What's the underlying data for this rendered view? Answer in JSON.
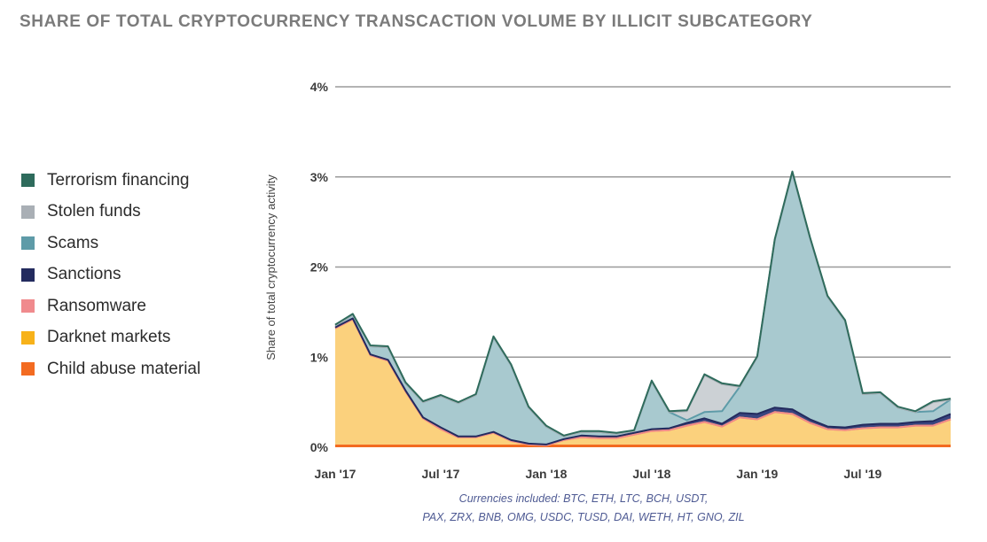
{
  "header": {
    "title": "SHARE OF TOTAL CRYPTOCURRENCY TRANSCACTION VOLUME BY ILLICIT SUBCATEGORY"
  },
  "legend": [
    {
      "label": "Terrorism financing",
      "color": "#2e6b5c"
    },
    {
      "label": "Stolen funds",
      "color": "#a9afb5"
    },
    {
      "label": "Scams",
      "color": "#5e9ba8"
    },
    {
      "label": "Sanctions",
      "color": "#232b5e"
    },
    {
      "label": "Ransomware",
      "color": "#f08a8d"
    },
    {
      "label": "Darknet markets",
      "color": "#f7b21a"
    },
    {
      "label": "Child abuse material",
      "color": "#f36b21"
    }
  ],
  "footer": {
    "note_line1": "Currencies included: BTC, ETH, LTC, BCH, USDT,",
    "note_line2": "PAX, ZRX, BNB, OMG, USDC, TUSD, DAI, WETH, HT, GNO, ZIL"
  },
  "chart_data": {
    "type": "area",
    "stacked": true,
    "title": "SHARE OF TOTAL CRYPTOCURRENCY TRANSCACTION VOLUME BY ILLICIT SUBCATEGORY",
    "ylabel": "Share of total cryptocurrency activity",
    "xlabel": "",
    "ylim": [
      0,
      4
    ],
    "y_unit": "%",
    "y_ticks": [
      "0%",
      "1%",
      "2%",
      "3%",
      "4%"
    ],
    "y_tick_values": [
      0,
      1,
      2,
      3,
      4
    ],
    "x_tick_labels": [
      "Jan '17",
      "Jul '17",
      "Jan '18",
      "Jul '18",
      "Jan '19",
      "Jul '19"
    ],
    "x_tick_values": [
      "2017-01",
      "2017-07",
      "2018-01",
      "2018-07",
      "2019-01",
      "2019-07"
    ],
    "grid": true,
    "legend_position": "left",
    "x": [
      "2017-01",
      "2017-02",
      "2017-03",
      "2017-04",
      "2017-05",
      "2017-06",
      "2017-07",
      "2017-08",
      "2017-09",
      "2017-10",
      "2017-11",
      "2017-12",
      "2018-01",
      "2018-02",
      "2018-03",
      "2018-04",
      "2018-05",
      "2018-06",
      "2018-07",
      "2018-08",
      "2018-09",
      "2018-10",
      "2018-11",
      "2018-12",
      "2019-01",
      "2019-02",
      "2019-03",
      "2019-04",
      "2019-05",
      "2019-06",
      "2019-07",
      "2019-08",
      "2019-09",
      "2019-10",
      "2019-11",
      "2019-12"
    ],
    "series": [
      {
        "name": "Child abuse material",
        "color": "#f36b21",
        "values": [
          0.02,
          0.02,
          0.02,
          0.02,
          0.02,
          0.02,
          0.02,
          0.02,
          0.02,
          0.02,
          0.02,
          0.02,
          0.02,
          0.02,
          0.02,
          0.02,
          0.02,
          0.02,
          0.02,
          0.02,
          0.02,
          0.02,
          0.02,
          0.02,
          0.02,
          0.02,
          0.02,
          0.02,
          0.02,
          0.02,
          0.02,
          0.02,
          0.02,
          0.02,
          0.02,
          0.02
        ]
      },
      {
        "name": "Darknet markets",
        "color": "#f7b21a",
        "values": [
          1.3,
          1.4,
          1.0,
          0.94,
          0.6,
          0.3,
          0.18,
          0.09,
          0.09,
          0.14,
          0.05,
          0.01,
          0.0,
          0.06,
          0.09,
          0.08,
          0.08,
          0.12,
          0.16,
          0.17,
          0.22,
          0.26,
          0.21,
          0.31,
          0.29,
          0.37,
          0.35,
          0.25,
          0.18,
          0.17,
          0.19,
          0.2,
          0.2,
          0.22,
          0.22,
          0.29
        ]
      },
      {
        "name": "Ransomware",
        "color": "#f08a8d",
        "values": [
          0.0,
          0.0,
          0.0,
          0.0,
          0.0,
          0.0,
          0.0,
          0.0,
          0.0,
          0.0,
          0.0,
          0.0,
          0.0,
          0.0,
          0.0,
          0.0,
          0.0,
          0.0,
          0.0,
          0.0,
          0.0,
          0.0,
          0.0,
          0.0,
          0.0,
          0.0,
          0.0,
          0.0,
          0.0,
          0.0,
          0.0,
          0.0,
          0.0,
          0.0,
          0.0,
          0.0
        ]
      },
      {
        "name": "Sanctions",
        "color": "#232b5e",
        "values": [
          0.01,
          0.01,
          0.01,
          0.01,
          0.01,
          0.01,
          0.02,
          0.01,
          0.01,
          0.01,
          0.01,
          0.01,
          0.01,
          0.01,
          0.02,
          0.02,
          0.02,
          0.02,
          0.02,
          0.02,
          0.03,
          0.04,
          0.03,
          0.05,
          0.06,
          0.05,
          0.05,
          0.04,
          0.03,
          0.03,
          0.04,
          0.04,
          0.04,
          0.04,
          0.05,
          0.06
        ]
      },
      {
        "name": "Scams",
        "color": "#5e9ba8",
        "values": [
          0.02,
          0.04,
          0.09,
          0.14,
          0.08,
          0.17,
          0.35,
          0.37,
          0.46,
          1.05,
          0.83,
          0.4,
          0.2,
          0.03,
          0.04,
          0.05,
          0.03,
          0.02,
          0.53,
          0.18,
          0.03,
          0.07,
          0.14,
          0.29,
          0.63,
          1.86,
          2.63,
          2.01,
          1.44,
          1.18,
          0.34,
          0.34,
          0.18,
          0.11,
          0.11,
          0.16
        ]
      },
      {
        "name": "Stolen funds",
        "color": "#a9afb5",
        "values": [
          0.0,
          0.0,
          0.0,
          0.0,
          0.0,
          0.0,
          0.0,
          0.0,
          0.0,
          0.0,
          0.0,
          0.0,
          0.0,
          0.0,
          0.0,
          0.0,
          0.0,
          0.0,
          0.0,
          0.0,
          0.1,
          0.41,
          0.3,
          0.0,
          0.0,
          0.0,
          0.0,
          0.0,
          0.0,
          0.0,
          0.0,
          0.0,
          0.0,
          0.0,
          0.1,
          0.0
        ]
      },
      {
        "name": "Terrorism financing",
        "color": "#2e6b5c",
        "values": [
          0.01,
          0.01,
          0.01,
          0.01,
          0.01,
          0.01,
          0.01,
          0.01,
          0.01,
          0.01,
          0.01,
          0.01,
          0.01,
          0.01,
          0.01,
          0.01,
          0.01,
          0.01,
          0.01,
          0.01,
          0.01,
          0.01,
          0.01,
          0.01,
          0.01,
          0.01,
          0.01,
          0.01,
          0.01,
          0.01,
          0.01,
          0.01,
          0.01,
          0.01,
          0.01,
          0.01
        ]
      }
    ]
  }
}
